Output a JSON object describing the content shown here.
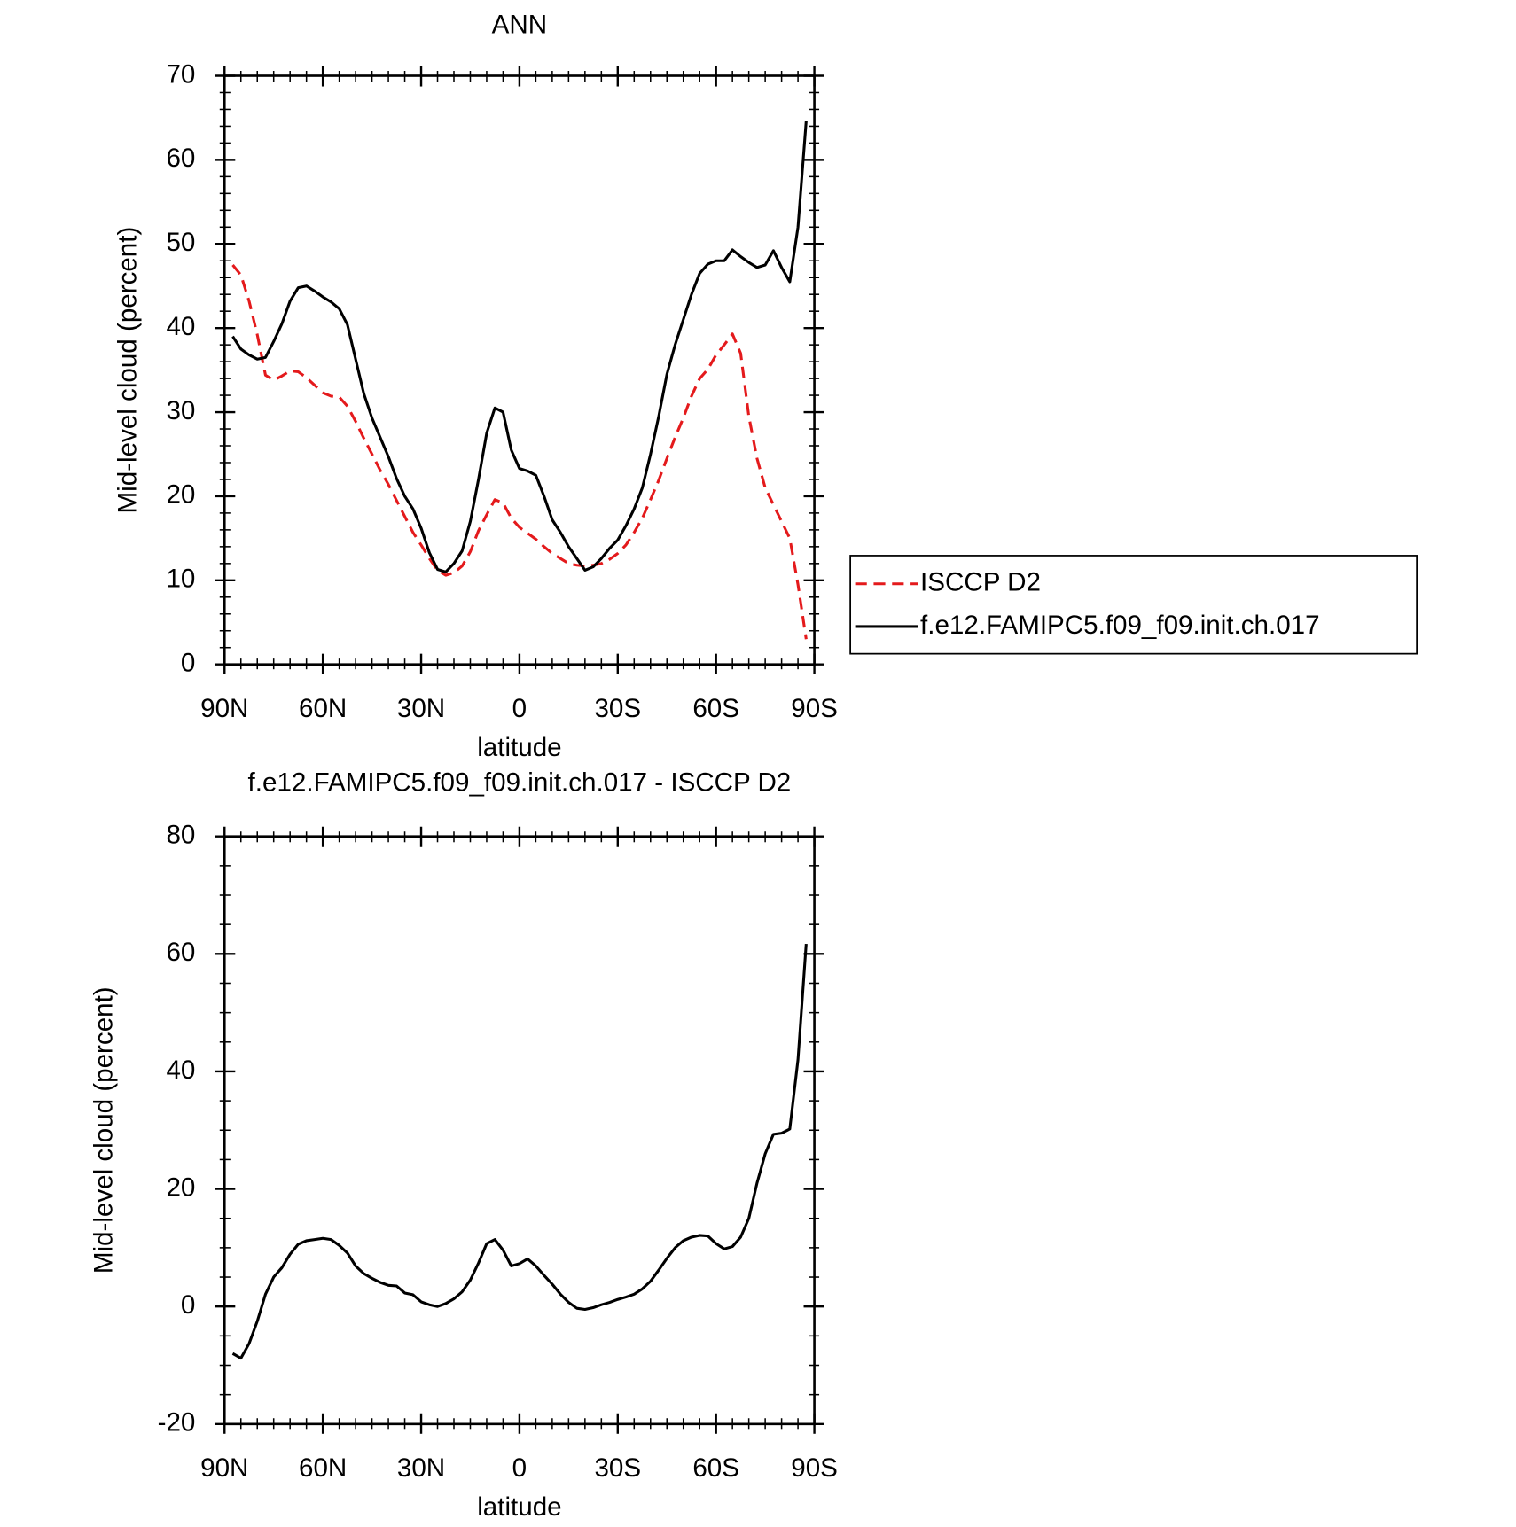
{
  "chart_data": [
    {
      "type": "line",
      "title": "ANN",
      "xlabel": "latitude",
      "ylabel": "Mid-level cloud (percent)",
      "xlim": [
        90,
        -90
      ],
      "xticks": [
        {
          "value": 90,
          "label": "90N"
        },
        {
          "value": 60,
          "label": "60N"
        },
        {
          "value": 30,
          "label": "30N"
        },
        0,
        {
          "value": -30,
          "label": "30S"
        },
        {
          "value": -60,
          "label": "60S"
        },
        {
          "value": -90,
          "label": "90S"
        }
      ],
      "ylim": [
        0,
        70
      ],
      "yticks": [
        0,
        10,
        20,
        30,
        40,
        50,
        60,
        70
      ],
      "legend": "right",
      "x": [
        87.5,
        85,
        82.5,
        80,
        77.5,
        75,
        72.5,
        70,
        67.5,
        65,
        62.5,
        60,
        57.5,
        55,
        52.5,
        50,
        47.5,
        45,
        42.5,
        40,
        37.5,
        35,
        32.5,
        30,
        27.5,
        25,
        22.5,
        20,
        17.5,
        15,
        12.5,
        10,
        7.5,
        5,
        2.5,
        0,
        -2.5,
        -5,
        -7.5,
        -10,
        -12.5,
        -15,
        -17.5,
        -20,
        -22.5,
        -25,
        -27.5,
        -30,
        -32.5,
        -35,
        -37.5,
        -40,
        -42.5,
        -45,
        -47.5,
        -50,
        -52.5,
        -55,
        -57.5,
        -60,
        -62.5,
        -65,
        -67.5,
        -70,
        -72.5,
        -75,
        -77.5,
        -80,
        -82.5,
        -85,
        -87.5
      ],
      "series": [
        {
          "name": "ISCCP D2",
          "color": "#e41a1c",
          "dash": "dashed",
          "values": [
            47.5,
            46.3,
            43.2,
            39.2,
            34.4,
            33.8,
            34.3,
            34.9,
            34.8,
            34.1,
            33.2,
            32.3,
            31.9,
            31.8,
            30.7,
            28.9,
            26.9,
            25.0,
            23.1,
            21.4,
            19.5,
            17.6,
            15.7,
            14.2,
            12.6,
            11.2,
            10.6,
            10.9,
            11.7,
            13.4,
            15.9,
            17.8,
            19.6,
            19.2,
            17.4,
            16.3,
            15.6,
            14.9,
            14.0,
            13.2,
            12.6,
            12.0,
            11.8,
            11.7,
            11.8,
            12.0,
            12.5,
            13.2,
            14.2,
            15.7,
            17.4,
            19.6,
            21.9,
            24.5,
            27.0,
            29.3,
            31.9,
            34.0,
            35.1,
            36.8,
            38.0,
            39.3,
            37.0,
            29.5,
            24.5,
            21.0,
            19.0,
            17.0,
            15.0,
            9.5,
            3.0
          ]
        },
        {
          "name": "f.e12.FAMIPC5.f09_f09.init.ch.017",
          "color": "#000000",
          "dash": "solid",
          "values": [
            39.0,
            37.5,
            36.8,
            36.3,
            36.5,
            38.4,
            40.5,
            43.2,
            44.8,
            45.0,
            44.4,
            43.7,
            43.1,
            42.3,
            40.4,
            36.3,
            32.2,
            29.3,
            27.0,
            24.7,
            22.1,
            20.0,
            18.5,
            16.2,
            13.3,
            11.3,
            11.0,
            12.0,
            13.5,
            17.0,
            22.0,
            27.5,
            30.5,
            30.0,
            25.5,
            23.3,
            23.0,
            22.5,
            20.0,
            17.2,
            15.7,
            14.0,
            12.6,
            11.2,
            11.6,
            12.6,
            13.8,
            14.8,
            16.5,
            18.5,
            21.0,
            25.0,
            29.5,
            34.5,
            38.0,
            41.0,
            44.0,
            46.5,
            47.6,
            48.0,
            48.0,
            49.3,
            48.5,
            47.8,
            47.2,
            47.5,
            49.2,
            47.2,
            45.5,
            52.0,
            64.6
          ]
        }
      ]
    },
    {
      "type": "line",
      "title": "f.e12.FAMIPC5.f09_f09.init.ch.017 - ISCCP D2",
      "xlabel": "latitude",
      "ylabel": "Mid-level cloud (percent)",
      "xlim": [
        90,
        -90
      ],
      "xticks": [
        {
          "value": 90,
          "label": "90N"
        },
        {
          "value": 60,
          "label": "60N"
        },
        {
          "value": 30,
          "label": "30N"
        },
        0,
        {
          "value": -30,
          "label": "30S"
        },
        {
          "value": -60,
          "label": "60S"
        },
        {
          "value": -90,
          "label": "90S"
        }
      ],
      "ylim": [
        -20,
        80
      ],
      "yticks": [
        -20,
        0,
        20,
        40,
        60,
        80
      ],
      "x": [
        87.5,
        85,
        82.5,
        80,
        77.5,
        75,
        72.5,
        70,
        67.5,
        65,
        62.5,
        60,
        57.5,
        55,
        52.5,
        50,
        47.5,
        45,
        42.5,
        40,
        37.5,
        35,
        32.5,
        30,
        27.5,
        25,
        22.5,
        20,
        17.5,
        15,
        12.5,
        10,
        7.5,
        5,
        2.5,
        0,
        -2.5,
        -5,
        -7.5,
        -10,
        -12.5,
        -15,
        -17.5,
        -20,
        -22.5,
        -25,
        -27.5,
        -30,
        -32.5,
        -35,
        -37.5,
        -40,
        -42.5,
        -45,
        -47.5,
        -50,
        -52.5,
        -55,
        -57.5,
        -60,
        -62.5,
        -65,
        -67.5,
        -70,
        -72.5,
        -75,
        -77.5,
        -80,
        -82.5,
        -85,
        -87.5
      ],
      "series": [
        {
          "color": "#000000",
          "dash": "solid",
          "values": [
            -8.0,
            -8.8,
            -6.3,
            -2.5,
            2.1,
            5.0,
            6.6,
            8.9,
            10.6,
            11.2,
            11.4,
            11.6,
            11.4,
            10.4,
            9.1,
            6.9,
            5.6,
            4.8,
            4.1,
            3.6,
            3.5,
            2.3,
            2.0,
            0.8,
            0.3,
            0,
            0.5,
            1.3,
            2.5,
            4.5,
            7.4,
            10.7,
            11.4,
            9.6,
            6.9,
            7.3,
            8.1,
            6.9,
            5.3,
            3.8,
            2.1,
            0.7,
            -0.3,
            -0.5,
            -0.2,
            0.3,
            0.7,
            1.2,
            1.6,
            2.1,
            3.0,
            4.3,
            6.2,
            8.2,
            10.0,
            11.2,
            11.8,
            12.1,
            12.0,
            10.7,
            9.8,
            10.2,
            11.8,
            15,
            21,
            26,
            29.3,
            29.5,
            30.2,
            42,
            61.7
          ]
        }
      ]
    }
  ]
}
